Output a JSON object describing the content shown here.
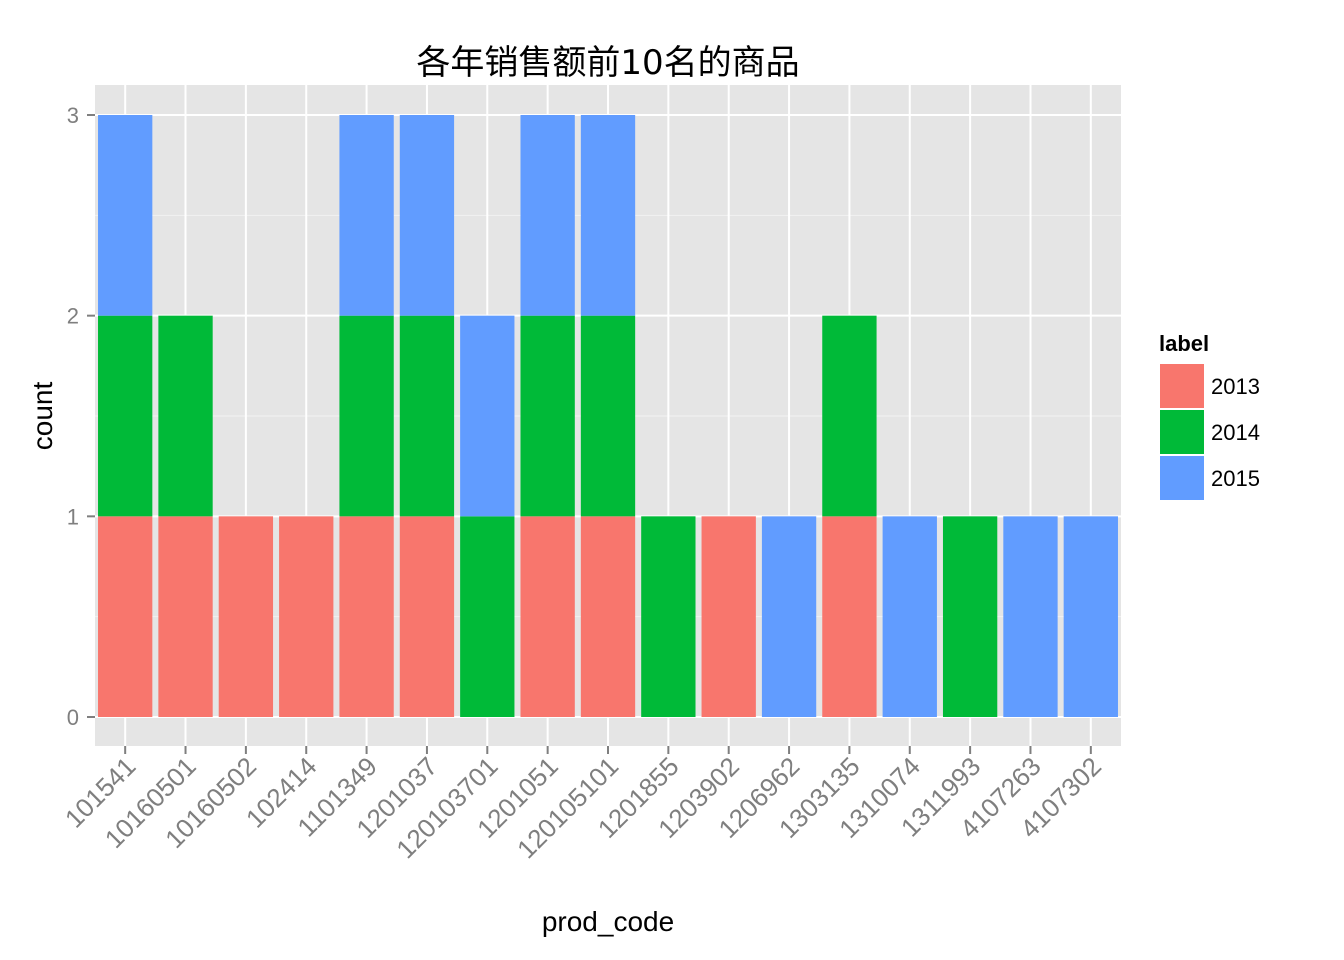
{
  "chart_data": {
    "type": "bar",
    "stacked": true,
    "title": "各年销售额前10名的商品",
    "xlabel": "prod_code",
    "ylabel": "count",
    "ylim": [
      0,
      3
    ],
    "yticks": [
      0,
      1,
      2,
      3
    ],
    "grid": true,
    "legend": {
      "title": "label",
      "position": "right"
    },
    "categories": [
      "101541",
      "10160501",
      "10160502",
      "102414",
      "1101349",
      "1201037",
      "120103701",
      "1201051",
      "120105101",
      "1201855",
      "1203902",
      "1206962",
      "1303135",
      "1310074",
      "1311993",
      "4107263",
      "4107302"
    ],
    "series": [
      {
        "name": "2013",
        "color": "#F8766D",
        "values": [
          1,
          1,
          1,
          1,
          1,
          1,
          0,
          1,
          1,
          0,
          1,
          0,
          1,
          0,
          0,
          0,
          0
        ]
      },
      {
        "name": "2014",
        "color": "#00BA38",
        "values": [
          1,
          1,
          0,
          0,
          1,
          1,
          1,
          1,
          1,
          1,
          0,
          0,
          1,
          0,
          1,
          0,
          0
        ]
      },
      {
        "name": "2015",
        "color": "#619CFF",
        "values": [
          1,
          0,
          0,
          0,
          1,
          1,
          1,
          1,
          1,
          0,
          0,
          1,
          0,
          1,
          0,
          1,
          1
        ]
      }
    ],
    "stack_order": [
      "2013",
      "2014",
      "2015"
    ],
    "panel_background": "#E5E5E5",
    "grid_color": "#FFFFFF"
  }
}
